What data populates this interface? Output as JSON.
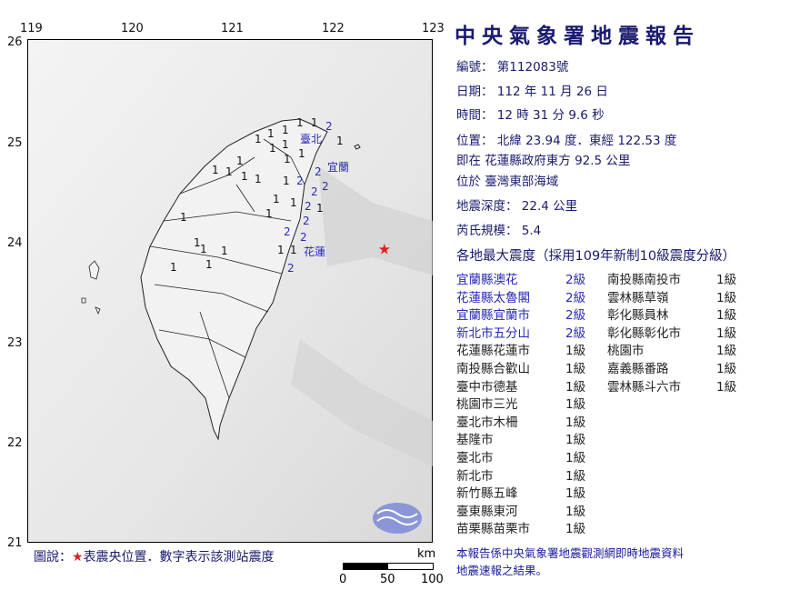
{
  "title": "中央氣象署地震報告",
  "report": {
    "number_label": "編號：",
    "number": "第112083號",
    "date_label": "日期：",
    "date": "112 年 11 月 26 日",
    "time_label": "時間：",
    "time": "12 時 31 分 9.6 秒",
    "location_label": "位置：",
    "location": "北緯 23.94 度．東經 122.53 度",
    "relative": "即在 花蓮縣政府東方 92.5 公里",
    "region": "位於 臺灣東部海域",
    "depth_label": "地震深度：",
    "depth": "22.4 公里",
    "magnitude_label": "芮氏規模：",
    "magnitude": "5.4",
    "intensity_header": "各地最大震度（採用109年新制10級震度分級）"
  },
  "intensities_col1": [
    {
      "place": "宜蘭縣澳花",
      "level": "2級"
    },
    {
      "place": "花蓮縣太魯閣",
      "level": "2級"
    },
    {
      "place": "宜蘭縣宜蘭市",
      "level": "2級"
    },
    {
      "place": "新北市五分山",
      "level": "2級"
    },
    {
      "place": "花蓮縣花蓮市",
      "level": "1級"
    },
    {
      "place": "南投縣合歡山",
      "level": "1級"
    },
    {
      "place": "臺中市德基",
      "level": "1級"
    },
    {
      "place": "桃園市三光",
      "level": "1級"
    },
    {
      "place": "臺北市木柵",
      "level": "1級"
    },
    {
      "place": "基隆市",
      "level": "1級"
    },
    {
      "place": "臺北市",
      "level": "1級"
    },
    {
      "place": "新北市",
      "level": "1級"
    },
    {
      "place": "新竹縣五峰",
      "level": "1級"
    },
    {
      "place": "臺東縣東河",
      "level": "1級"
    },
    {
      "place": "苗栗縣苗栗市",
      "level": "1級"
    }
  ],
  "intensities_col2": [
    {
      "place": "南投縣南投市",
      "level": "1級"
    },
    {
      "place": "雲林縣草嶺",
      "level": "1級"
    },
    {
      "place": "彰化縣員林",
      "level": "1級"
    },
    {
      "place": "彰化縣彰化市",
      "level": "1級"
    },
    {
      "place": "桃園市",
      "level": "1級"
    },
    {
      "place": "嘉義縣番路",
      "level": "1級"
    },
    {
      "place": "雲林縣斗六市",
      "level": "1級"
    }
  ],
  "map": {
    "lon_ticks": [
      "119",
      "120",
      "121",
      "122",
      "123"
    ],
    "lat_ticks": [
      "26",
      "25",
      "24",
      "23",
      "22",
      "21"
    ],
    "city_labels": [
      "臺北",
      "宜蘭",
      "花蓮"
    ],
    "station_values": [
      "1",
      "1",
      "2",
      "1",
      "1",
      "1",
      "1",
      "1",
      "1",
      "1",
      "2",
      "2",
      "1",
      "2",
      "2",
      "2",
      "2",
      "1",
      "1",
      "1",
      "1",
      "1",
      "1",
      "1",
      "1",
      "1",
      "1",
      "1",
      "1",
      "1",
      "2",
      "2",
      "1",
      "1",
      "2",
      "1",
      "1",
      "1"
    ],
    "epicenter": {
      "lat": 23.94,
      "lon": 122.53
    },
    "epicenter_color": "#e02020",
    "scale_unit": "km",
    "scale_ticks": [
      "0",
      "50",
      "100"
    ]
  },
  "legend": {
    "prefix": "圖說：",
    "star_icon": "★",
    "text": "表震央位置．數字表示該測站震度"
  },
  "footnote": [
    "本報告係中央氣象署地震觀測網即時地震資料",
    "地震速報之結果。"
  ]
}
